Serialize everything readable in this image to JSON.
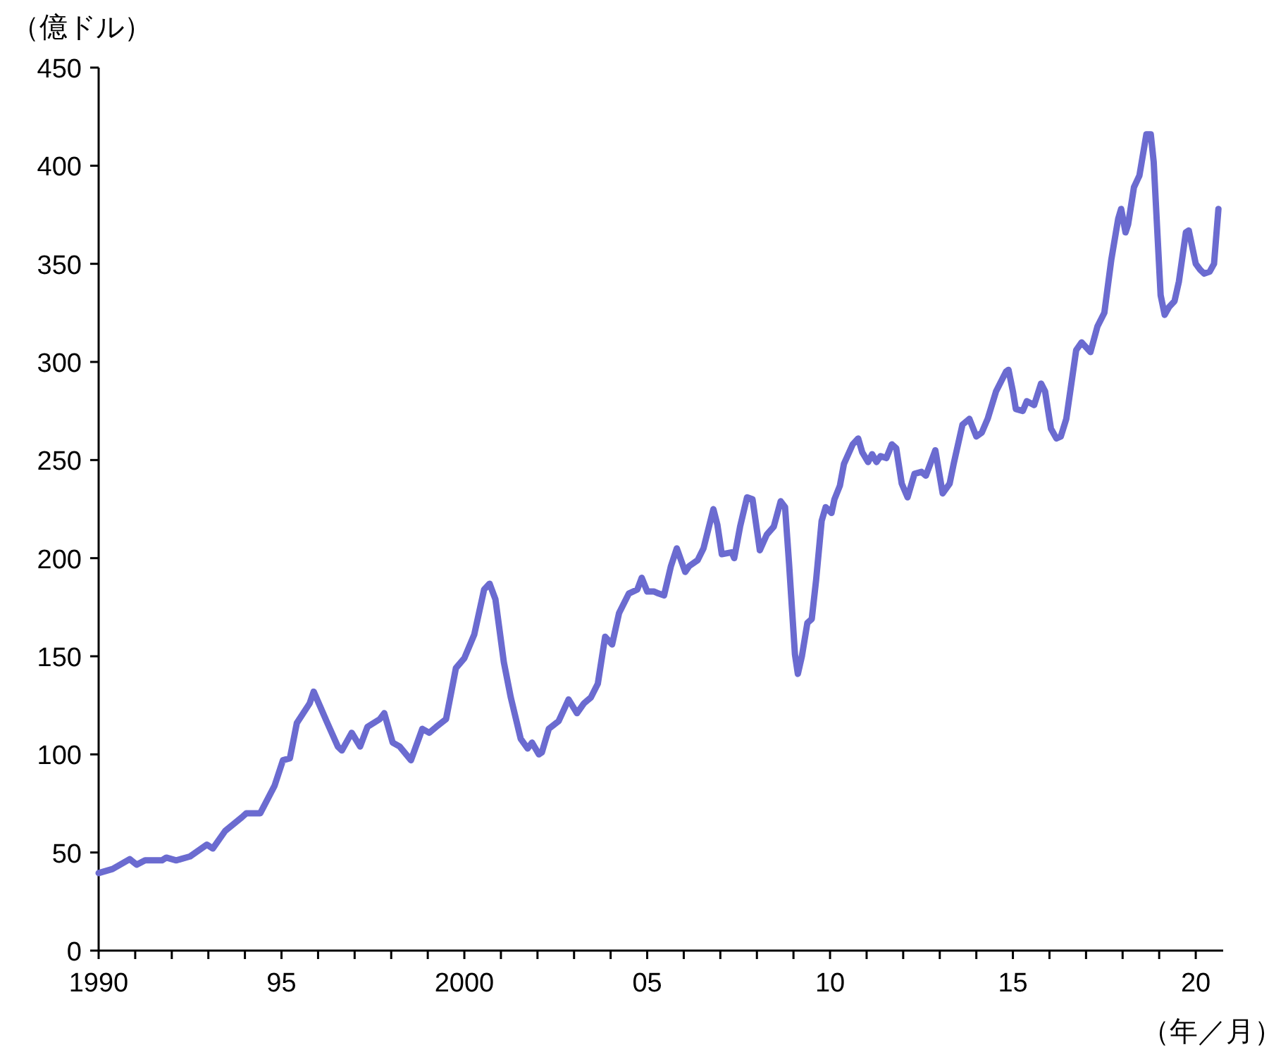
{
  "chart_data": {
    "type": "line",
    "ylabel": "（億ドル）",
    "xlabel": "（年／月）",
    "x": [
      1990.0,
      1990.38,
      1990.85,
      1991.04,
      1991.27,
      1991.73,
      1991.85,
      1992.12,
      1992.5,
      1992.96,
      1993.12,
      1993.46,
      1993.92,
      1994.04,
      1994.42,
      1994.81,
      1995.04,
      1995.23,
      1995.42,
      1995.77,
      1995.88,
      1996.23,
      1996.54,
      1996.65,
      1996.92,
      1997.15,
      1997.35,
      1997.69,
      1997.81,
      1998.04,
      1998.23,
      1998.54,
      1998.85,
      1999.04,
      1999.23,
      1999.5,
      1999.77,
      2000.0,
      2000.27,
      2000.54,
      2000.69,
      2000.85,
      2001.08,
      2001.27,
      2001.54,
      2001.73,
      2001.85,
      2002.04,
      2002.12,
      2002.31,
      2002.58,
      2002.85,
      2003.08,
      2003.27,
      2003.46,
      2003.65,
      2003.85,
      2004.04,
      2004.23,
      2004.5,
      2004.73,
      2004.85,
      2005.0,
      2005.19,
      2005.31,
      2005.46,
      2005.65,
      2005.81,
      2006.04,
      2006.15,
      2006.38,
      2006.54,
      2006.81,
      2006.92,
      2007.04,
      2007.31,
      2007.38,
      2007.54,
      2007.73,
      2007.88,
      2008.08,
      2008.27,
      2008.46,
      2008.65,
      2008.77,
      2008.88,
      2009.04,
      2009.12,
      2009.23,
      2009.38,
      2009.5,
      2009.62,
      2009.77,
      2009.88,
      2010.04,
      2010.12,
      2010.27,
      2010.38,
      2010.62,
      2010.77,
      2010.88,
      2011.04,
      2011.15,
      2011.27,
      2011.38,
      2011.54,
      2011.69,
      2011.81,
      2011.96,
      2012.12,
      2012.31,
      2012.5,
      2012.62,
      2012.88,
      2013.08,
      2013.27,
      2013.38,
      2013.62,
      2013.81,
      2014.0,
      2014.15,
      2014.31,
      2014.54,
      2014.81,
      2014.88,
      2015.0,
      2015.08,
      2015.27,
      2015.38,
      2015.58,
      2015.77,
      2015.88,
      2016.04,
      2016.19,
      2016.31,
      2016.46,
      2016.73,
      2016.88,
      2017.12,
      2017.31,
      2017.5,
      2017.69,
      2017.88,
      2017.96,
      2018.08,
      2018.15,
      2018.31,
      2018.46,
      2018.65,
      2018.77,
      2018.85,
      2019.04,
      2019.15,
      2019.27,
      2019.42,
      2019.54,
      2019.73,
      2019.81,
      2020.0,
      2020.12,
      2020.23,
      2020.38,
      2020.5,
      2020.62
    ],
    "series": [
      {
        "color": "#6b6bd0",
        "values": [
          39.5,
          41.6,
          46.6,
          43.8,
          46,
          46,
          47.4,
          46,
          48,
          54,
          52,
          61,
          68,
          70,
          70,
          84,
          97,
          98,
          116,
          126,
          132,
          117,
          104,
          102,
          111,
          104,
          114,
          118,
          121,
          106,
          104,
          97,
          113,
          111,
          114,
          118,
          144,
          149,
          161,
          184,
          187,
          179,
          147,
          129,
          108,
          103,
          106,
          100,
          101,
          113,
          117,
          128,
          121,
          126,
          129,
          136,
          160,
          156,
          172,
          182,
          184,
          190,
          183,
          183,
          182,
          181,
          196,
          205,
          193,
          196,
          199,
          205,
          225,
          217,
          202,
          203,
          200,
          216,
          231,
          230,
          204,
          212,
          216,
          229,
          226,
          197,
          151,
          141,
          150,
          167,
          169,
          189,
          219,
          226,
          223,
          230,
          237,
          248,
          258,
          261,
          254,
          249,
          253,
          249,
          252,
          251,
          258,
          256,
          238,
          231,
          243,
          244,
          242,
          255,
          233,
          238,
          248,
          268,
          271,
          262,
          264,
          271,
          285,
          295,
          296,
          285,
          276,
          275,
          280,
          278,
          289,
          285,
          266,
          261,
          262,
          271,
          306,
          310,
          305,
          318,
          325,
          352,
          373,
          378,
          366,
          370,
          389,
          395,
          416,
          416,
          402,
          334,
          324,
          328,
          331,
          341,
          366,
          367,
          350,
          347,
          345,
          346,
          350,
          378
        ]
      }
    ],
    "xlim": [
      1990,
      2020.75
    ],
    "xticks": [
      1990,
      {
        "value": 1991,
        "label": null
      },
      {
        "value": 1992,
        "label": null
      },
      {
        "value": 1993,
        "label": null
      },
      {
        "value": 1994,
        "label": null
      },
      {
        "value": 1995,
        "label": "95"
      },
      {
        "value": 1996,
        "label": null
      },
      {
        "value": 1997,
        "label": null
      },
      {
        "value": 1998,
        "label": null
      },
      {
        "value": 1999,
        "label": null
      },
      2000,
      {
        "value": 2001,
        "label": null
      },
      {
        "value": 2002,
        "label": null
      },
      {
        "value": 2003,
        "label": null
      },
      {
        "value": 2004,
        "label": null
      },
      {
        "value": 2005,
        "label": "05"
      },
      {
        "value": 2006,
        "label": null
      },
      {
        "value": 2007,
        "label": null
      },
      {
        "value": 2008,
        "label": null
      },
      {
        "value": 2009,
        "label": null
      },
      {
        "value": 2010,
        "label": "10"
      },
      {
        "value": 2011,
        "label": null
      },
      {
        "value": 2012,
        "label": null
      },
      {
        "value": 2013,
        "label": null
      },
      {
        "value": 2014,
        "label": null
      },
      {
        "value": 2015,
        "label": "15"
      },
      {
        "value": 2016,
        "label": null
      },
      {
        "value": 2017,
        "label": null
      },
      {
        "value": 2018,
        "label": null
      },
      {
        "value": 2019,
        "label": null
      },
      {
        "value": 2020,
        "label": "20"
      }
    ],
    "ylim": [
      0,
      450
    ],
    "yticks": [
      0,
      50,
      100,
      150,
      200,
      250,
      300,
      350,
      400,
      450
    ],
    "grid": false,
    "marker": "none",
    "line_style": "solid"
  }
}
